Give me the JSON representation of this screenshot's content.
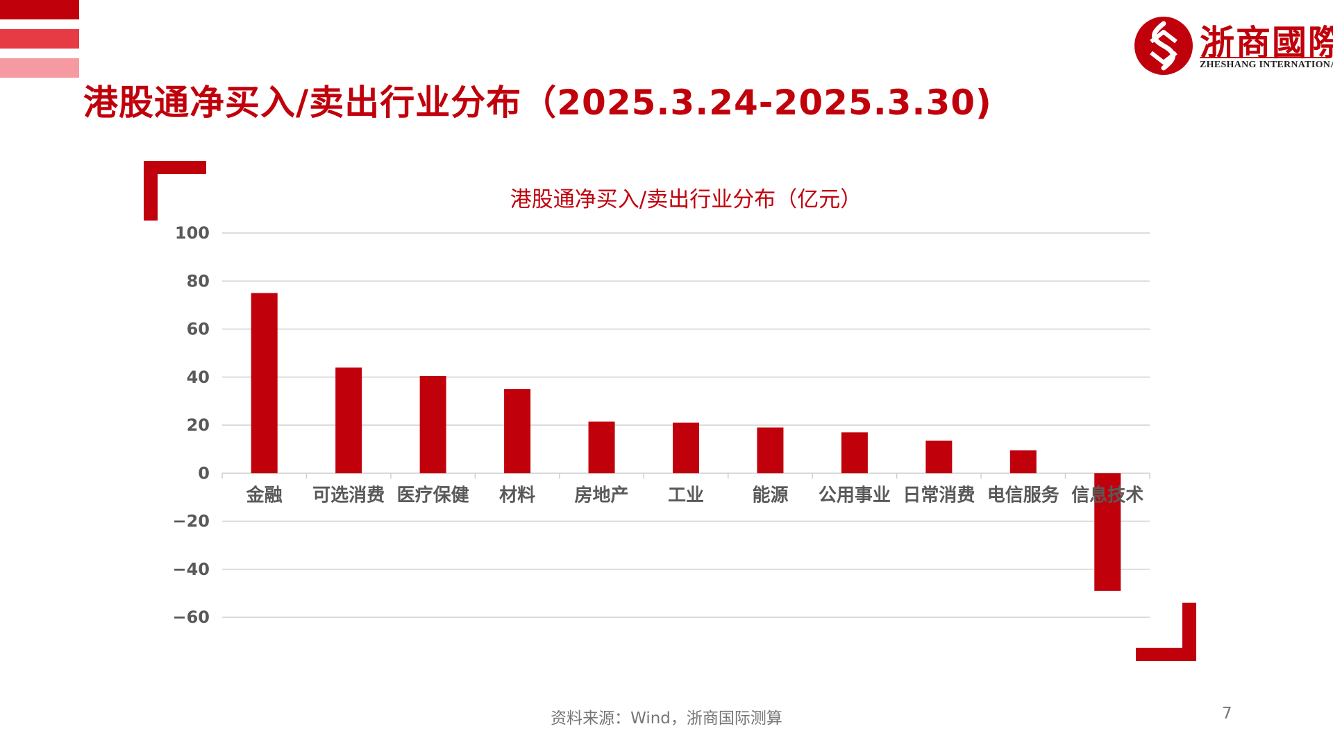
{
  "page": {
    "title": "港股通净买入/卖出行业分布（2025.3.24-2025.3.30)",
    "source": "资料来源：Wind，浙商国际测算",
    "page_number": "7"
  },
  "logo": {
    "name": "浙商國際",
    "subtitle": "ZHESHANG INTERNATIONAL"
  },
  "colors": {
    "accent": "#c0000b",
    "stripe_mid": "#e63a45",
    "stripe_light": "#f59aa0",
    "grid": "#d0d0d0",
    "text": "#595959"
  },
  "chart_data": {
    "type": "bar",
    "title": "港股通净买入/卖出行业分布（亿元）",
    "xlabel": "",
    "ylabel": "",
    "ylim": [
      -60,
      100
    ],
    "yticks": [
      100,
      80,
      60,
      40,
      20,
      0,
      -20,
      -40,
      -60
    ],
    "grid": true,
    "legend": "none",
    "categories": [
      "金融",
      "可选消费",
      "医疗保健",
      "材料",
      "房地产",
      "工业",
      "能源",
      "公用事业",
      "日常消费",
      "电信服务",
      "信息技术"
    ],
    "values": [
      75,
      44,
      40.5,
      35,
      21.5,
      21,
      19,
      17,
      13.5,
      9.5,
      -49
    ]
  }
}
